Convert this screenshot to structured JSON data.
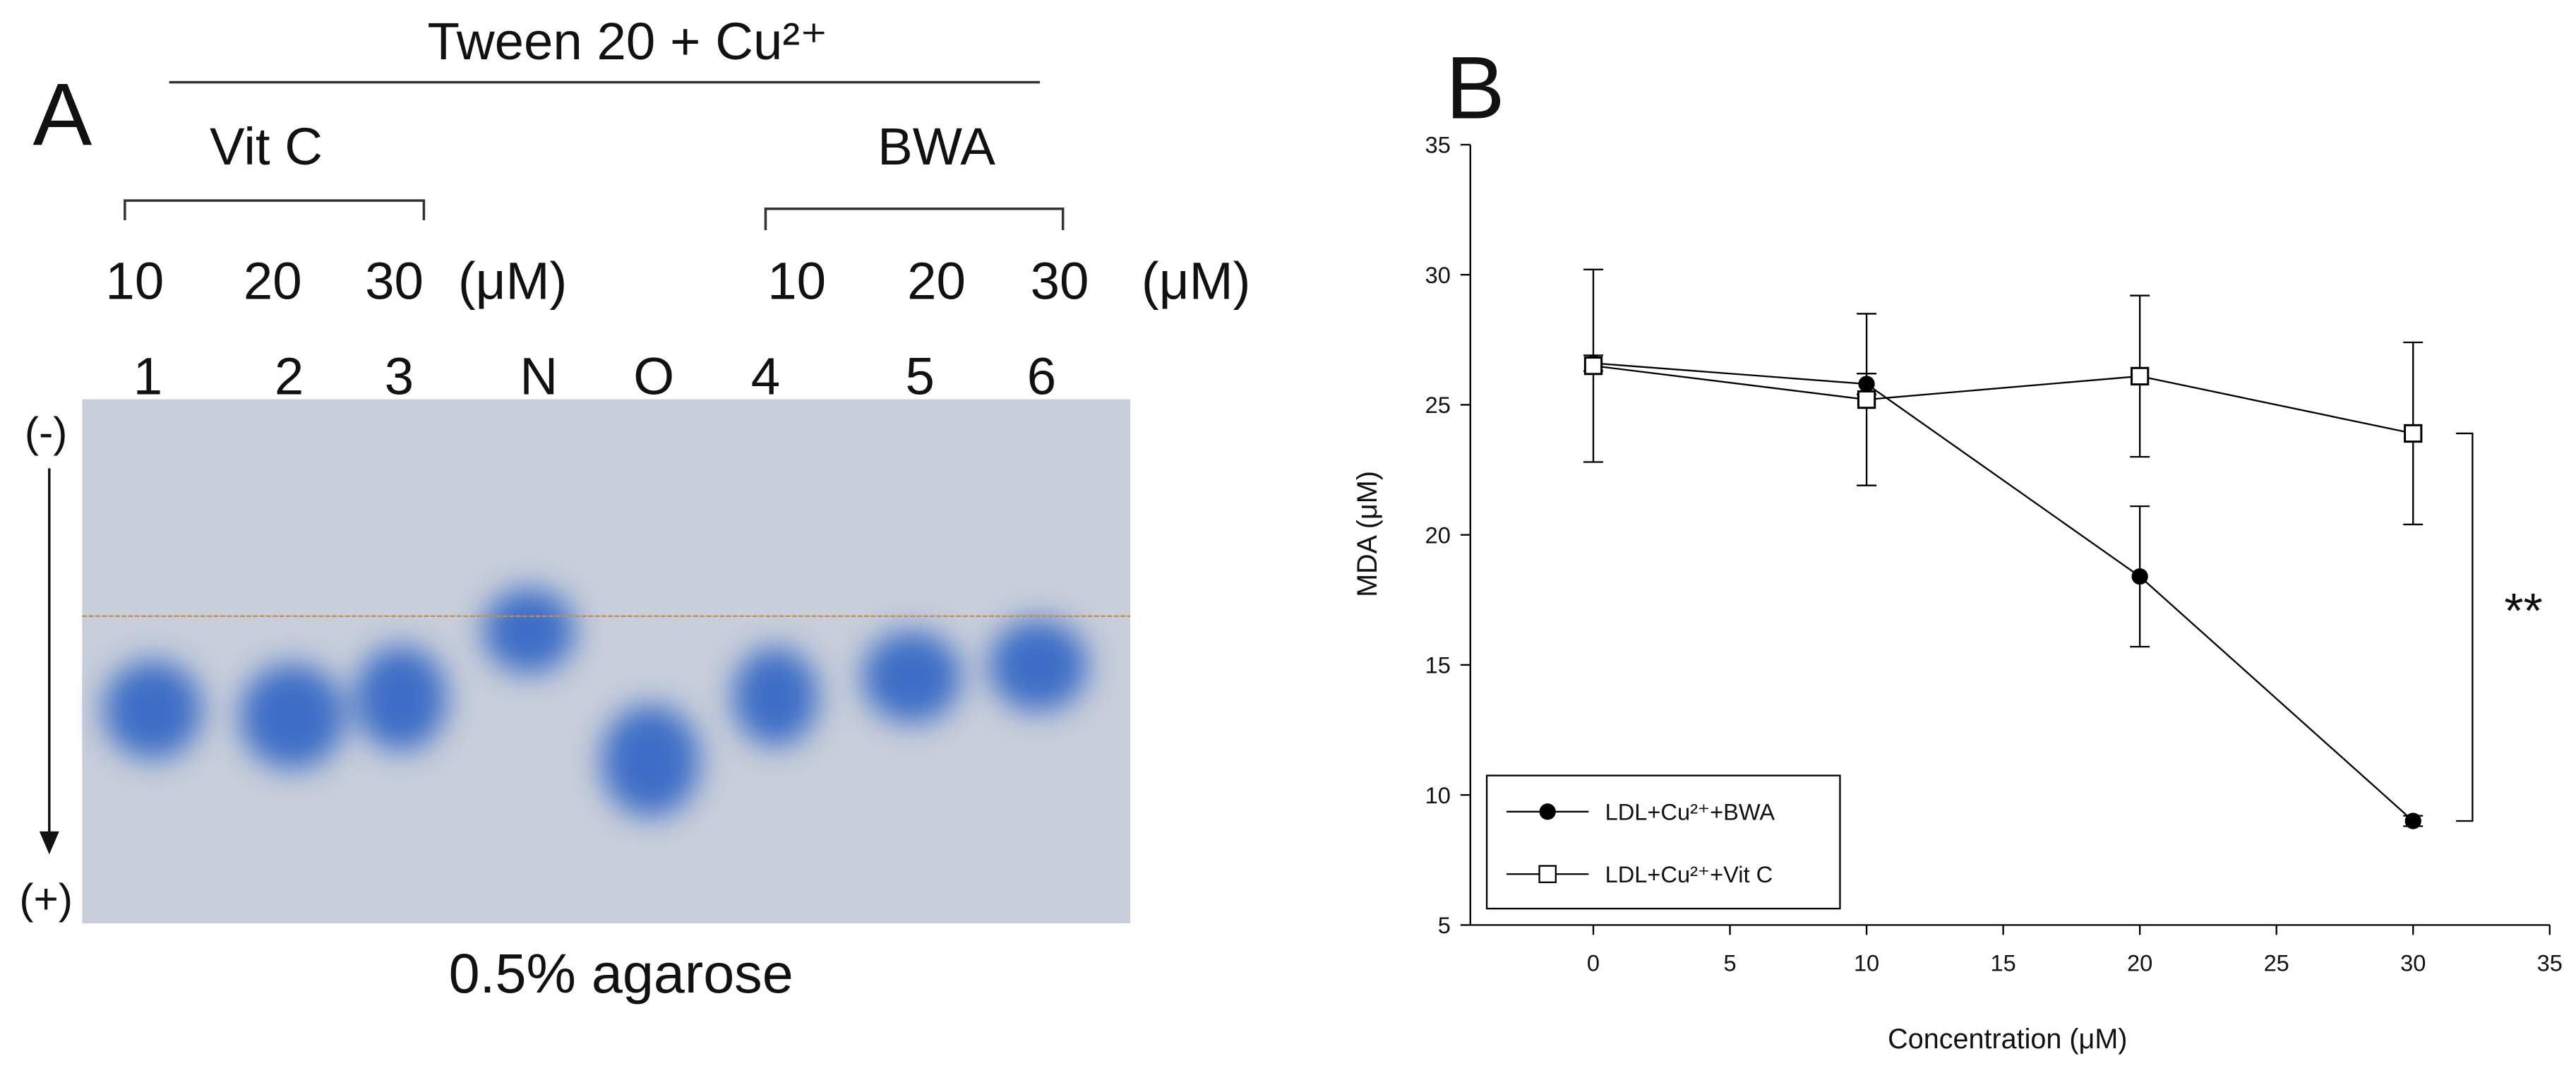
{
  "panel_a": {
    "label": "A",
    "treatment": "Tween 20 + Cu²⁺",
    "groups": [
      "Vit C",
      "BWA"
    ],
    "concentrations": [
      "10",
      "20",
      "30",
      "(μM)",
      "10",
      "20",
      "30",
      "(μM)"
    ],
    "lanes": [
      "1",
      "2",
      "3",
      "N",
      "O",
      "4",
      "5",
      "6"
    ],
    "polarity": [
      "(-)",
      "(+)"
    ],
    "caption": "0.5% agarose"
  },
  "chart_data": {
    "type": "line",
    "panel_label": "B",
    "xlabel": "Concentration (μM)",
    "ylabel": "MDA (μM)",
    "x": [
      0,
      10,
      20,
      30
    ],
    "series": [
      {
        "name": "LDL+Cu²⁺+BWA",
        "color": "#000000",
        "marker": "circle",
        "values": [
          26.6,
          25.8,
          18.4,
          9.0
        ],
        "errors": [
          0.3,
          0.4,
          2.7,
          0.2
        ]
      },
      {
        "name": "LDL+Cu²⁺+Vit C",
        "color": "#000000",
        "marker": "square",
        "values": [
          26.5,
          25.2,
          26.1,
          23.9
        ],
        "errors": [
          3.7,
          3.3,
          3.1,
          3.5
        ]
      }
    ],
    "xlim": [
      -4.5,
      35
    ],
    "ylim": [
      5,
      35
    ],
    "xticks": [
      0,
      5,
      10,
      15,
      20,
      25,
      30,
      35
    ],
    "yticks": [
      5,
      10,
      15,
      20,
      25,
      30,
      35
    ],
    "annotation": "**",
    "legend": "lower left"
  }
}
